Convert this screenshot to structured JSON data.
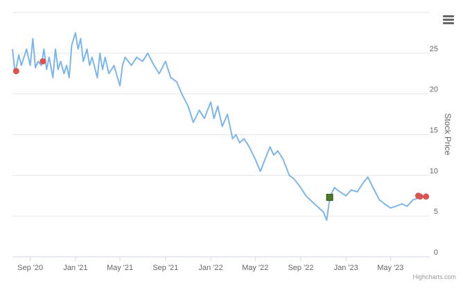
{
  "menu": {
    "icon": "hamburger-menu-icon"
  },
  "credit": "Highcharts.com",
  "chart_data": {
    "type": "line",
    "title": "",
    "ylabel": "Stock Price",
    "ylim": [
      0,
      30
    ],
    "yticks": [
      0,
      5,
      10,
      15,
      20,
      25
    ],
    "ytick_labels": [
      "0",
      "5",
      "10",
      "15",
      "20",
      "25"
    ],
    "xlim": [
      "2020-07-15",
      "2023-08-15"
    ],
    "xticks": [
      "2020-09-01",
      "2021-01-01",
      "2021-05-01",
      "2021-09-01",
      "2022-01-01",
      "2022-05-01",
      "2022-09-01",
      "2023-01-01",
      "2023-05-01"
    ],
    "xtick_labels": [
      "Sep '20",
      "Jan '21",
      "May '21",
      "Sep '21",
      "Jan '22",
      "May '22",
      "Sep '22",
      "Jan '23",
      "May '23"
    ],
    "grid": true,
    "line_color": "#7cb5ec",
    "series": [
      {
        "x": [
          "2020-07-15",
          "2020-07-22",
          "2020-08-01",
          "2020-08-08",
          "2020-08-15",
          "2020-08-22",
          "2020-09-01",
          "2020-09-08",
          "2020-09-15",
          "2020-09-22",
          "2020-10-01",
          "2020-10-08",
          "2020-10-15",
          "2020-10-22",
          "2020-11-01",
          "2020-11-08",
          "2020-11-15",
          "2020-11-22",
          "2020-12-01",
          "2020-12-08",
          "2020-12-15",
          "2020-12-22",
          "2021-01-01",
          "2021-01-08",
          "2021-01-15",
          "2021-01-22",
          "2021-02-01",
          "2021-02-08",
          "2021-02-15",
          "2021-03-01",
          "2021-03-08",
          "2021-03-15",
          "2021-03-22",
          "2021-04-01",
          "2021-04-15",
          "2021-05-01",
          "2021-05-08",
          "2021-05-15",
          "2021-06-01",
          "2021-06-15",
          "2021-07-01",
          "2021-07-15",
          "2021-08-01",
          "2021-08-15",
          "2021-09-01",
          "2021-09-15",
          "2021-10-01",
          "2021-10-15",
          "2021-11-01",
          "2021-11-08",
          "2021-11-15",
          "2021-12-01",
          "2021-12-15",
          "2022-01-01",
          "2022-01-10",
          "2022-01-20",
          "2022-02-01",
          "2022-02-15",
          "2022-03-01",
          "2022-03-10",
          "2022-03-20",
          "2022-04-01",
          "2022-04-15",
          "2022-05-01",
          "2022-05-15",
          "2022-06-01",
          "2022-06-10",
          "2022-06-20",
          "2022-07-01",
          "2022-07-15",
          "2022-08-01",
          "2022-08-15",
          "2022-09-01",
          "2022-09-15",
          "2022-10-01",
          "2022-10-15",
          "2022-11-01",
          "2022-11-10",
          "2022-11-16",
          "2022-11-20",
          "2022-12-01",
          "2022-12-15",
          "2023-01-01",
          "2023-01-15",
          "2023-02-01",
          "2023-02-15",
          "2023-03-01",
          "2023-03-15",
          "2023-04-01",
          "2023-04-15",
          "2023-05-01",
          "2023-05-15",
          "2023-06-01",
          "2023-06-15",
          "2023-07-01",
          "2023-07-15",
          "2023-08-01",
          "2023-08-10"
        ],
        "y": [
          25.5,
          22.5,
          24.8,
          23.5,
          24.5,
          25.5,
          23.5,
          26.8,
          23.2,
          24.0,
          23.5,
          25.5,
          23.0,
          24.5,
          22.0,
          25.5,
          23.0,
          24.0,
          22.5,
          23.5,
          22.0,
          26.0,
          27.5,
          25.5,
          26.8,
          24.0,
          25.5,
          23.5,
          24.5,
          22.0,
          25.0,
          23.0,
          24.5,
          22.5,
          23.5,
          21.0,
          23.5,
          24.5,
          23.5,
          24.5,
          24.0,
          25.0,
          23.5,
          22.5,
          24.0,
          22.0,
          21.5,
          20.0,
          18.5,
          17.5,
          16.5,
          18.0,
          17.0,
          19.0,
          17.0,
          18.5,
          16.0,
          17.5,
          14.5,
          15.0,
          14.0,
          14.5,
          13.5,
          12.0,
          10.5,
          12.5,
          13.5,
          12.5,
          13.0,
          12.0,
          10.0,
          9.5,
          8.5,
          7.5,
          6.8,
          6.2,
          5.5,
          4.5,
          6.5,
          7.5,
          8.5,
          8.0,
          7.5,
          8.2,
          8.0,
          9.0,
          9.8,
          8.5,
          7.0,
          6.5,
          6.0,
          6.2,
          6.5,
          6.2,
          7.0,
          7.2,
          7.5,
          7.5
        ]
      }
    ],
    "markers": [
      {
        "x": "2020-07-25",
        "y": 22.8,
        "shape": "circle",
        "color": "#d9534f"
      },
      {
        "x": "2020-10-05",
        "y": 24.0,
        "shape": "circle",
        "color": "#d9534f"
      },
      {
        "x": "2022-11-18",
        "y": 7.3,
        "shape": "square",
        "color": "#4f7a28"
      },
      {
        "x": "2023-07-15",
        "y": 7.5,
        "shape": "circle",
        "color": "#d9534f"
      },
      {
        "x": "2023-07-20",
        "y": 7.4,
        "shape": "circle",
        "color": "#d9534f"
      },
      {
        "x": "2023-08-05",
        "y": 7.4,
        "shape": "circle",
        "color": "#d9534f"
      }
    ]
  }
}
